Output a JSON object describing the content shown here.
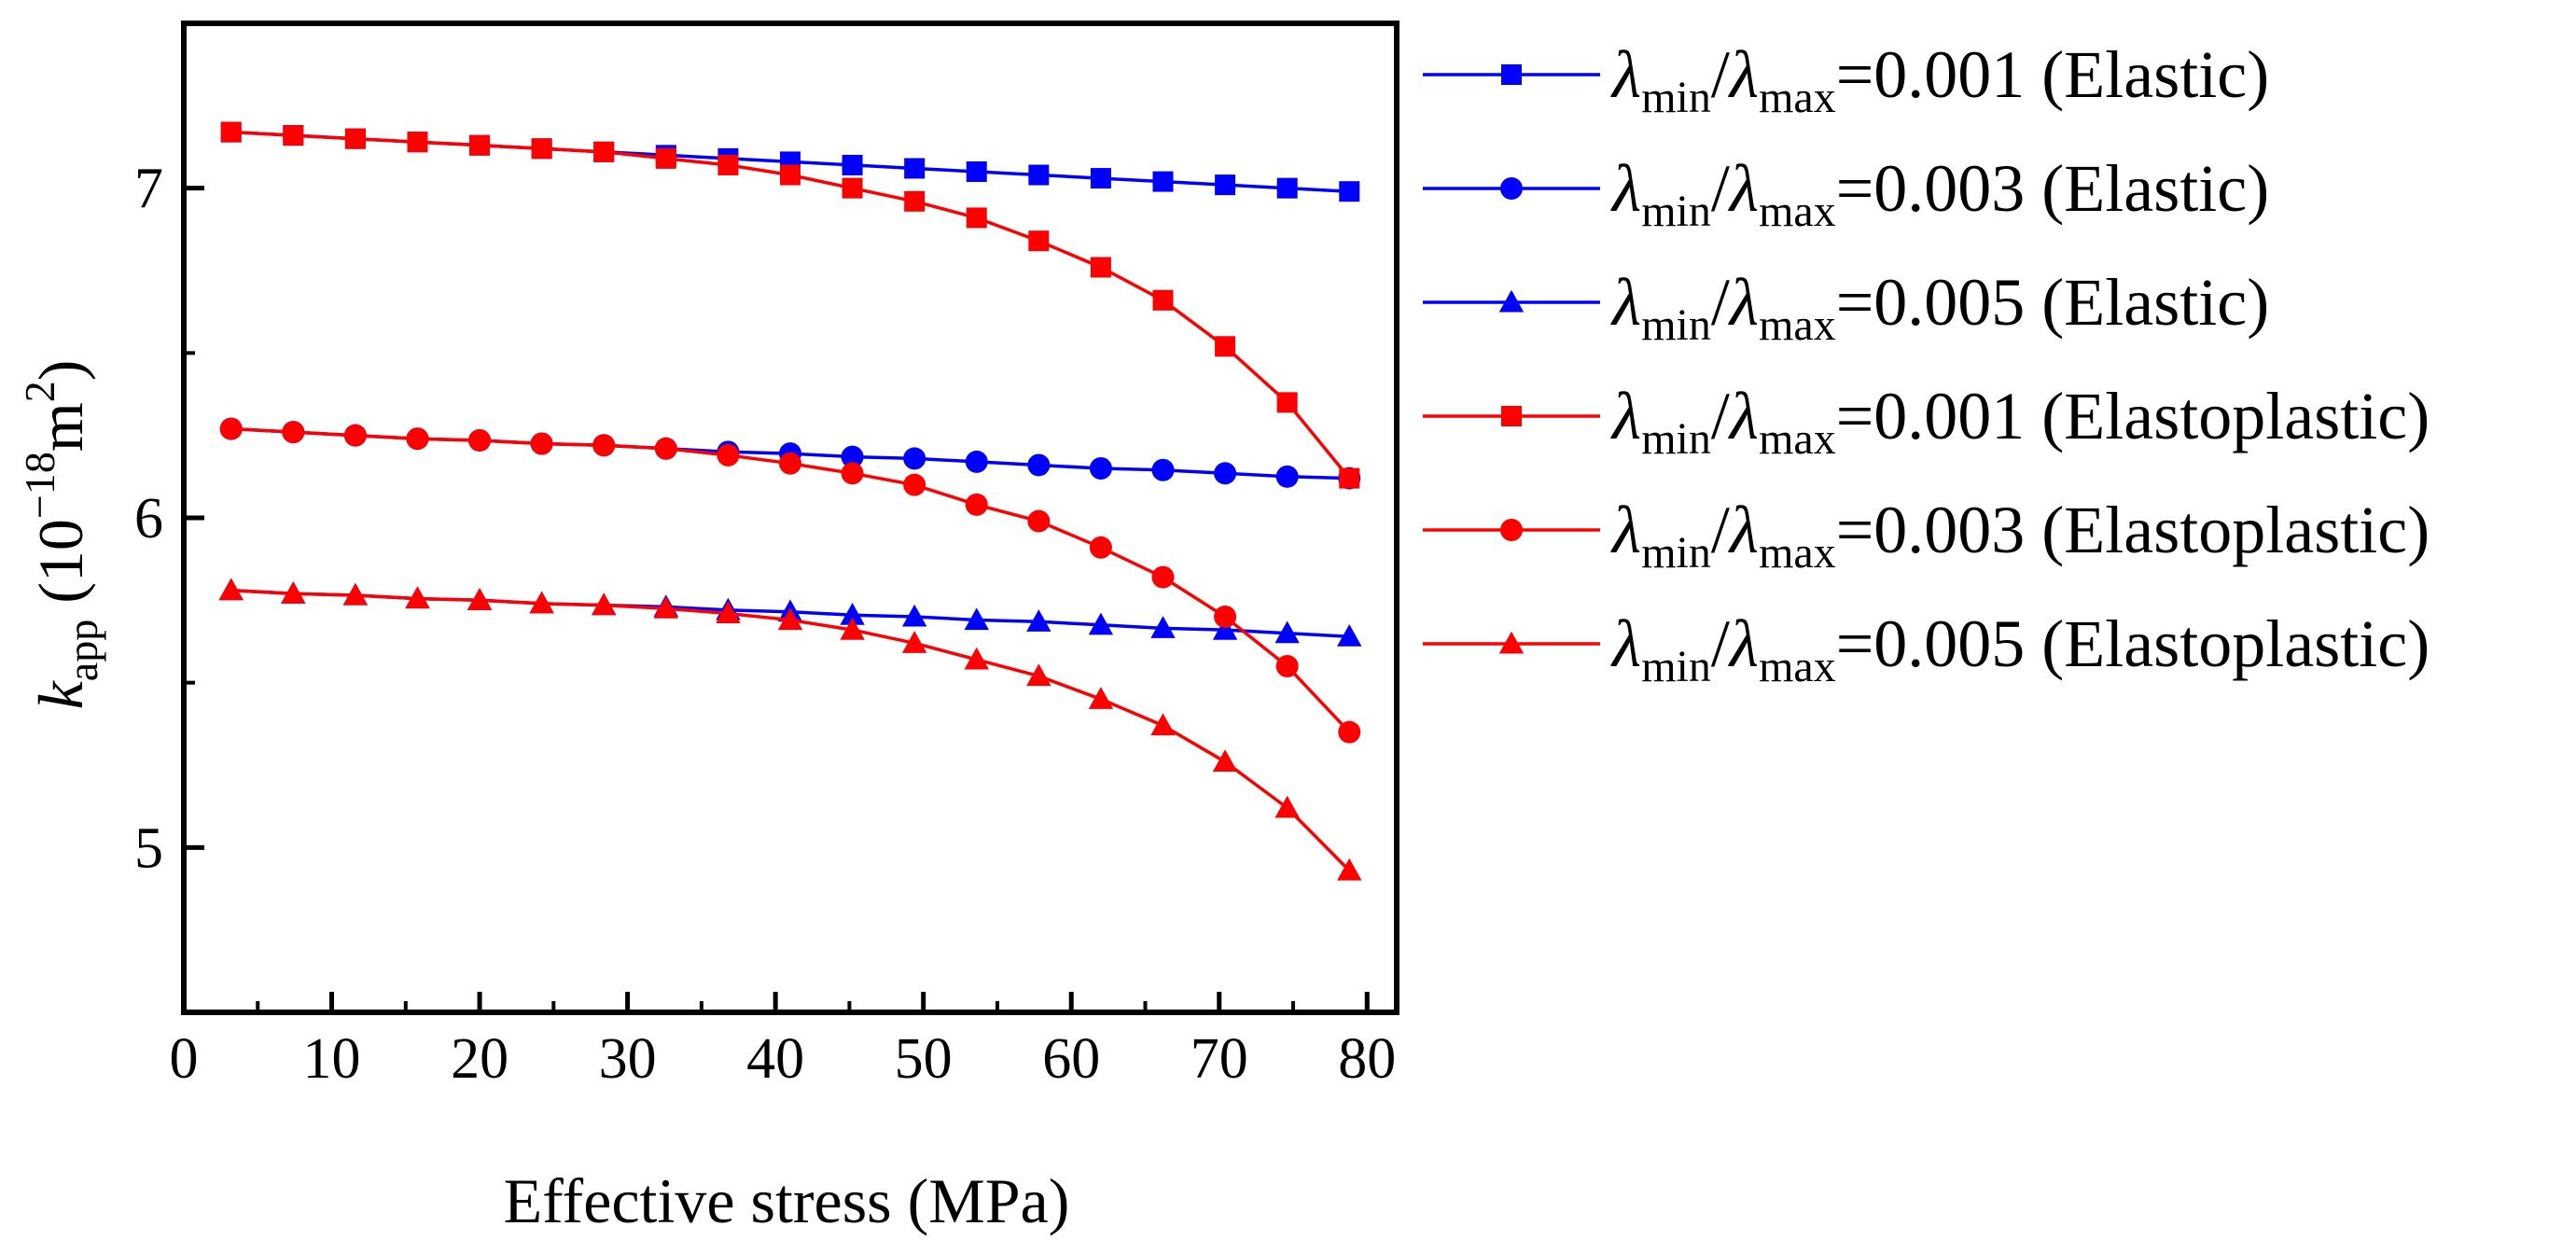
{
  "chart_data": {
    "type": "line",
    "xlabel": "Effective stress (MPa)",
    "ylabel": {
      "var": "k",
      "sub": "app",
      "unit_prefix": " (10",
      "exp": "−18",
      "unit_mid": "m",
      "unit_exp": "2",
      "unit_suffix": ")"
    },
    "xlim": [
      0,
      82
    ],
    "ylim": [
      4.5,
      7.5
    ],
    "xticks": [
      0,
      10,
      20,
      30,
      40,
      50,
      60,
      70,
      80
    ],
    "yticks": [
      5,
      6,
      7
    ],
    "x": [
      3.2,
      7.4,
      11.6,
      15.8,
      20.0,
      24.2,
      28.4,
      32.6,
      36.8,
      41.0,
      45.2,
      49.4,
      53.6,
      57.8,
      62.0,
      66.2,
      70.4,
      74.6,
      78.8
    ],
    "series": [
      {
        "name": "λmin/λmax=0.001 (Elastic)",
        "legend": {
          "lam": "λ",
          "min": "min",
          "slash": "/",
          "max": "max",
          "rest": "=0.001 (Elastic)"
        },
        "color": "#0000ff",
        "marker": "square",
        "values": [
          7.17,
          7.16,
          7.15,
          7.14,
          7.13,
          7.12,
          7.11,
          7.1,
          7.09,
          7.08,
          7.07,
          7.06,
          7.05,
          7.04,
          7.03,
          7.02,
          7.01,
          7.0,
          6.99
        ]
      },
      {
        "name": "λmin/λmax=0.003 (Elastic)",
        "legend": {
          "lam": "λ",
          "min": "min",
          "slash": "/",
          "max": "max",
          "rest": "=0.003 (Elastic)"
        },
        "color": "#0000ff",
        "marker": "circle",
        "values": [
          6.27,
          6.26,
          6.25,
          6.24,
          6.235,
          6.225,
          6.22,
          6.21,
          6.2,
          6.195,
          6.185,
          6.18,
          6.17,
          6.16,
          6.15,
          6.145,
          6.135,
          6.125,
          6.12
        ]
      },
      {
        "name": "λmin/λmax=0.005 (Elastic)",
        "legend": {
          "lam": "λ",
          "min": "min",
          "slash": "/",
          "max": "max",
          "rest": "=0.005 (Elastic)"
        },
        "color": "#0000ff",
        "marker": "triangle",
        "values": [
          5.78,
          5.77,
          5.765,
          5.755,
          5.75,
          5.74,
          5.735,
          5.73,
          5.72,
          5.715,
          5.705,
          5.7,
          5.69,
          5.685,
          5.675,
          5.665,
          5.66,
          5.65,
          5.64
        ]
      },
      {
        "name": "λmin/λmax=0.001 (Elastoplastic)",
        "legend": {
          "lam": "λ",
          "min": "min",
          "slash": "/",
          "max": "max",
          "rest": "=0.001 (Elastoplastic)"
        },
        "color": "#ff0000",
        "marker": "square",
        "values": [
          7.17,
          7.16,
          7.15,
          7.14,
          7.13,
          7.12,
          7.11,
          7.09,
          7.07,
          7.04,
          7.0,
          6.96,
          6.91,
          6.84,
          6.76,
          6.66,
          6.52,
          6.35,
          6.12
        ]
      },
      {
        "name": "λmin/λmax=0.003 (Elastoplastic)",
        "legend": {
          "lam": "λ",
          "min": "min",
          "slash": "/",
          "max": "max",
          "rest": "=0.003 (Elastoplastic)"
        },
        "color": "#ff0000",
        "marker": "circle",
        "values": [
          6.27,
          6.26,
          6.25,
          6.24,
          6.235,
          6.225,
          6.22,
          6.21,
          6.19,
          6.165,
          6.135,
          6.1,
          6.04,
          5.99,
          5.91,
          5.82,
          5.7,
          5.55,
          5.35
        ]
      },
      {
        "name": "λmin/λmax=0.005 (Elastoplastic)",
        "legend": {
          "lam": "λ",
          "min": "min",
          "slash": "/",
          "max": "max",
          "rest": "=0.005 (Elastoplastic)"
        },
        "color": "#ff0000",
        "marker": "triangle",
        "values": [
          5.78,
          5.77,
          5.765,
          5.755,
          5.75,
          5.74,
          5.735,
          5.725,
          5.71,
          5.69,
          5.66,
          5.62,
          5.57,
          5.52,
          5.45,
          5.37,
          5.26,
          5.12,
          4.93
        ]
      }
    ],
    "legend_position": "right"
  }
}
